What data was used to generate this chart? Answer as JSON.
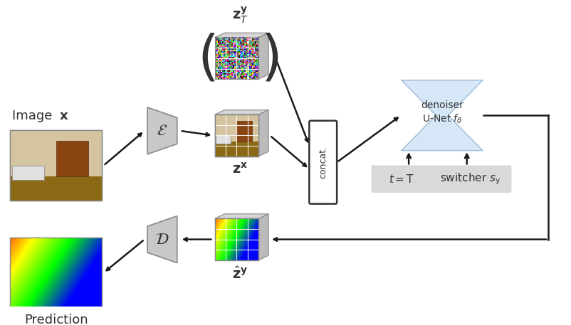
{
  "fig_width": 8.02,
  "fig_height": 4.57,
  "dpi": 100,
  "bg_color": "#ffffff",
  "image_x_label": "Image ",
  "image_x_bold": "x",
  "prediction_label": "Prediction",
  "zT_label": "$\\mathbf{z}_T^\\mathbf{y}$",
  "zx_label": "$\\mathbf{z}^\\mathbf{x}$",
  "zhat_label": "$\\hat{\\mathbf{z}}^\\mathbf{y}$",
  "encoder_label": "$\\mathcal{E}$",
  "decoder_label": "$\\mathcal{D}$",
  "concat_label": "concat.",
  "denoiser_line1": "denoiser",
  "denoiser_line2": "U-Net $f_\\theta$",
  "t_label": "$t = \\mathrm{T}$",
  "switcher_label": "switcher $s_\\mathrm{y}$",
  "unet_color": "#d6e8f7",
  "box_bg": "#d9d9d9",
  "concat_bg": "#ffffff",
  "arrow_color": "#1a1a1a",
  "encoder_decoder_color": "#c0c0c0"
}
